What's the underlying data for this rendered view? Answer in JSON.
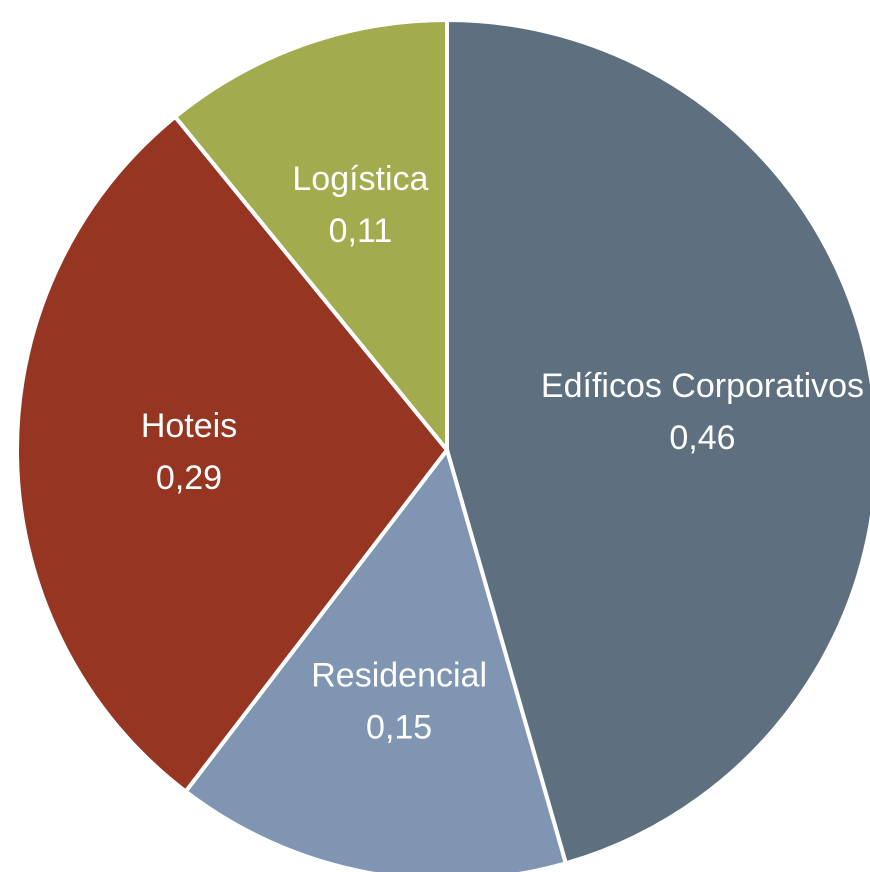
{
  "chart_data": {
    "type": "pie",
    "categories": [
      "Edíficos Corporativos",
      "Residencial",
      "Hoteis",
      "Logística"
    ],
    "values": [
      0.46,
      0.15,
      0.29,
      0.11
    ],
    "value_labels": [
      "0,46",
      "0,15",
      "0,29",
      "0,11"
    ],
    "colors": [
      "#5e6f80",
      "#7f95b2",
      "#963622",
      "#a2ab4d"
    ]
  }
}
